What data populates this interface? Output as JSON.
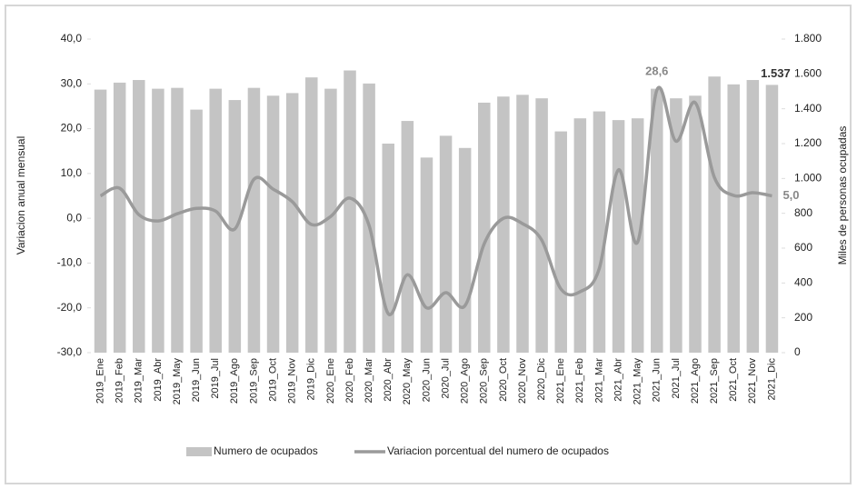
{
  "chart_data": {
    "type": "bar",
    "categories": [
      "2019_Ene",
      "2019_Feb",
      "2019_Mar",
      "2019_Abr",
      "2019_May",
      "2019_Jun",
      "2019_Jul",
      "2019_Ago",
      "2019_Sep",
      "2019_Oct",
      "2019_Nov",
      "2019_Dic",
      "2020_Ene",
      "2020_Feb",
      "2020_Mar",
      "2020_Abr",
      "2020_May",
      "2020_Jun",
      "2020_Jul",
      "2020_Ago",
      "2020_Sep",
      "2020_Oct",
      "2020_Nov",
      "2020_Dic",
      "2021_Ene",
      "2021_Feb",
      "2021_Mar",
      "2021_Abr",
      "2021_May",
      "2021_Jun",
      "2021_Jul",
      "2021_Ago",
      "2021_Sep",
      "2021_Oct",
      "2021_Nov",
      "2021_Dic"
    ],
    "series": [
      {
        "name": "Numero de ocupados",
        "type": "bar",
        "axis": "y2",
        "color": "#c4c4c4",
        "values": [
          1510,
          1550,
          1565,
          1515,
          1520,
          1395,
          1515,
          1450,
          1520,
          1475,
          1490,
          1580,
          1515,
          1620,
          1545,
          1200,
          1330,
          1120,
          1245,
          1175,
          1435,
          1470,
          1480,
          1460,
          1270,
          1345,
          1385,
          1335,
          1345,
          1515,
          1460,
          1475,
          1585,
          1540,
          1565,
          1537
        ],
        "value_labels": [
          null,
          null,
          null,
          null,
          null,
          null,
          null,
          null,
          null,
          null,
          null,
          null,
          null,
          null,
          null,
          null,
          null,
          null,
          null,
          null,
          null,
          null,
          null,
          null,
          null,
          null,
          null,
          null,
          null,
          null,
          null,
          null,
          null,
          null,
          null,
          "1.537"
        ]
      },
      {
        "name": "Variacion porcentual del numero de ocupados",
        "type": "line",
        "axis": "y",
        "color": "#9a9a9a",
        "values": [
          5.0,
          6.7,
          0.8,
          -0.6,
          1.0,
          2.2,
          1.6,
          -2.4,
          8.7,
          6.5,
          3.7,
          -1.4,
          0.4,
          4.5,
          -1.6,
          -21.3,
          -12.6,
          -20.0,
          -16.6,
          -19.5,
          -5.7,
          0.0,
          -1.2,
          -4.9,
          -15.8,
          -16.4,
          -11.2,
          10.8,
          -5.3,
          28.6,
          17.2,
          25.8,
          9.1,
          5.1,
          5.7,
          5.0
        ],
        "value_labels": [
          null,
          null,
          null,
          null,
          null,
          null,
          null,
          null,
          null,
          null,
          null,
          null,
          null,
          null,
          null,
          null,
          null,
          null,
          null,
          null,
          null,
          null,
          null,
          null,
          null,
          null,
          null,
          null,
          null,
          "28,6",
          null,
          null,
          null,
          null,
          null,
          "5,0"
        ]
      }
    ],
    "ylabel": "Variacion anual mensual",
    "y2label": "Miles de personas ocupadas",
    "ylim": [
      -30,
      40
    ],
    "yticks": [
      {
        "value": -30,
        "label": "-30,0"
      },
      {
        "value": -20,
        "label": "-20,0"
      },
      {
        "value": -10,
        "label": "-10,0"
      },
      {
        "value": 0,
        "label": "0,0"
      },
      {
        "value": 10,
        "label": "10,0"
      },
      {
        "value": 20,
        "label": "20,0"
      },
      {
        "value": 30,
        "label": "30,0"
      },
      {
        "value": 40,
        "label": "40,0"
      }
    ],
    "y2lim": [
      0,
      1800
    ],
    "y2ticks": [
      0,
      200,
      400,
      600,
      800,
      {
        "value": 1000,
        "label": "1.000"
      },
      {
        "value": 1200,
        "label": "1.200"
      },
      {
        "value": 1400,
        "label": "1.400"
      },
      {
        "value": 1600,
        "label": "1.600"
      },
      {
        "value": 1800,
        "label": "1.800"
      }
    ],
    "legend": "bottom",
    "grid": false
  }
}
